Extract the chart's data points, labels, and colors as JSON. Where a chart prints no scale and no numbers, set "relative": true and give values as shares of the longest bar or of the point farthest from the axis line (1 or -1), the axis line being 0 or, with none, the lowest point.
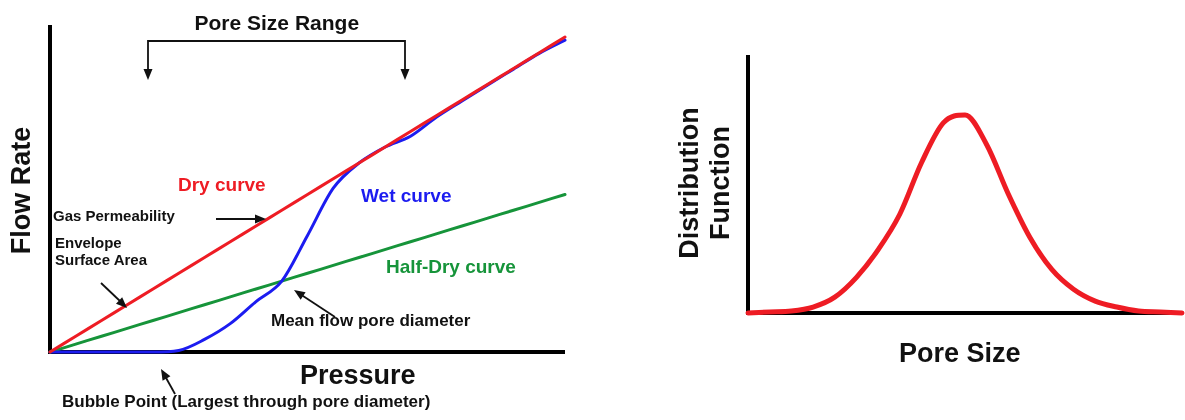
{
  "chart_data": [
    {
      "type": "line",
      "xlabel": "Pressure",
      "ylabel": "Flow Rate",
      "relative": true,
      "marker": "none",
      "categories": [
        null,
        null,
        null,
        null,
        null,
        null,
        null,
        null,
        null,
        null,
        null,
        null,
        null,
        null,
        null,
        null,
        null,
        null,
        null,
        null,
        null
      ],
      "series": [
        {
          "name": "Dry curve",
          "color": "#ee1c24",
          "values": [
            0,
            0.05,
            0.1,
            0.15,
            0.2,
            0.25,
            0.3,
            0.35,
            0.4,
            0.45,
            0.5,
            0.55,
            0.6,
            0.65,
            0.7,
            0.75,
            0.8,
            0.85,
            0.9,
            0.95,
            1
          ]
        },
        {
          "name": "Wet curve",
          "color": "#1c1cf0",
          "values": [
            0,
            0,
            0,
            0,
            0,
            0.005,
            0.04,
            0.09,
            0.16,
            0.225,
            0.37,
            0.52,
            0.6,
            0.65,
            0.685,
            0.745,
            0.797,
            0.848,
            0.898,
            0.948,
            0.99
          ]
        },
        {
          "name": "Half-Dry curve",
          "color": "#16943a",
          "values": [
            0,
            0.025,
            0.05,
            0.075,
            0.1,
            0.125,
            0.15,
            0.175,
            0.2,
            0.225,
            0.25,
            0.275,
            0.3,
            0.325,
            0.35,
            0.375,
            0.4,
            0.425,
            0.45,
            0.475,
            0.5
          ]
        }
      ],
      "annotations": [
        "Pore Size Range",
        "Gas Permeability",
        "Envelope Surface Area",
        "Mean flow pore diameter",
        "Bubble Point (Largest through pore diameter)"
      ]
    },
    {
      "type": "line",
      "xlabel": "Pore Size",
      "ylabel": "Distribution Function",
      "relative": true,
      "marker": "none",
      "categories": [
        null,
        null,
        null,
        null,
        null,
        null,
        null,
        null,
        null,
        null,
        null,
        null,
        null,
        null,
        null,
        null,
        null,
        null,
        null,
        null,
        null
      ],
      "series": [
        {
          "color": "#ee1c24",
          "values": [
            0,
            0.005,
            0.01,
            0.03,
            0.08,
            0.18,
            0.32,
            0.5,
            0.76,
            0.96,
            1,
            0.85,
            0.6,
            0.38,
            0.22,
            0.12,
            0.06,
            0.03,
            0.01,
            0.005,
            0
          ]
        }
      ]
    }
  ]
}
